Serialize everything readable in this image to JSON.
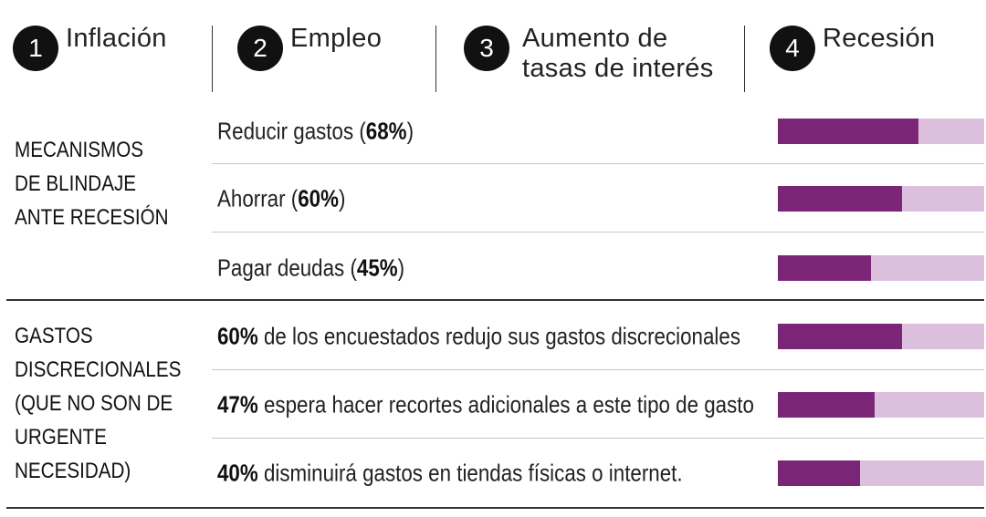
{
  "concerns": [
    {
      "number": "1",
      "label": "Inflación"
    },
    {
      "number": "2",
      "label": "Empleo"
    },
    {
      "number": "3",
      "label_line1": "Aumento de",
      "label_line2": "tasas de interés"
    },
    {
      "number": "4",
      "label": "Recesión"
    }
  ],
  "chart_data": {
    "type": "bar",
    "xlim": [
      0,
      100
    ],
    "colors": {
      "fill": "#7b2577",
      "track": "#dcbfdc"
    },
    "groups": [
      {
        "title_lines": [
          "MECANISMOS",
          "DE BLINDAJE",
          "ANTE RECESIÓN"
        ],
        "rows": [
          {
            "value": 68,
            "text_before": "Reducir gastos (",
            "value_label": "68%",
            "text_after": ")"
          },
          {
            "value": 60,
            "text_before": "Ahorrar (",
            "value_label": "60%",
            "text_after": ")"
          },
          {
            "value": 45,
            "text_before": "Pagar deudas (",
            "value_label": "45%",
            "text_after": ")"
          }
        ]
      },
      {
        "title_lines": [
          "GASTOS",
          "DISCRECIONALES",
          "(QUE NO SON DE",
          "URGENTE",
          "NECESIDAD)"
        ],
        "rows": [
          {
            "value": 60,
            "text_before": "",
            "value_label": "60%",
            "text_after": " de los encuestados redujo sus gastos discrecionales"
          },
          {
            "value": 47,
            "text_before": "",
            "value_label": "47%",
            "text_after": " espera hacer recortes adicionales a este tipo de gasto"
          },
          {
            "value": 40,
            "text_before": "",
            "value_label": "40%",
            "text_after": " disminuirá gastos en tiendas físicas o internet."
          }
        ]
      }
    ]
  }
}
